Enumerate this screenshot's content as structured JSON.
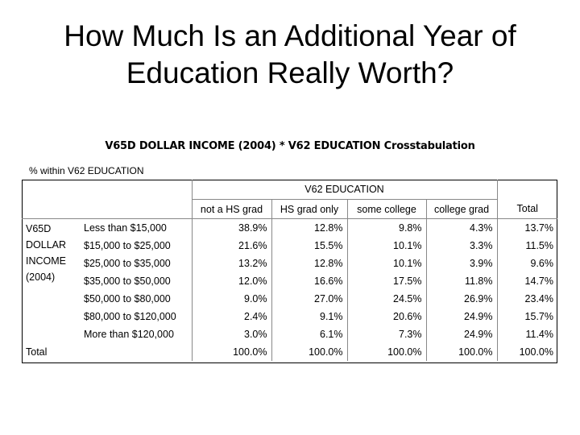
{
  "slide": {
    "title_line1": "How Much Is an Additional Year of",
    "title_line2": "Education Really Worth?"
  },
  "table": {
    "title": "V65D DOLLAR INCOME (2004) * V62 EDUCATION Crosstabulation",
    "subtitle": "% within V62 EDUCATION",
    "col_group": "V62 EDUCATION",
    "columns": [
      "not a HS grad",
      "HS grad only",
      "some college",
      "college grad",
      "Total"
    ],
    "row_var_lines": [
      "V65D",
      "DOLLAR",
      "INCOME",
      "(2004)"
    ],
    "rows": [
      {
        "label": "Less than $15,000",
        "values": [
          "38.9%",
          "12.8%",
          "9.8%",
          "4.3%",
          "13.7%"
        ]
      },
      {
        "label": "$15,000 to $25,000",
        "values": [
          "21.6%",
          "15.5%",
          "10.1%",
          "3.3%",
          "11.5%"
        ]
      },
      {
        "label": "$25,000 to $35,000",
        "values": [
          "13.2%",
          "12.8%",
          "10.1%",
          "3.9%",
          "9.6%"
        ]
      },
      {
        "label": "$35,000 to $50,000",
        "values": [
          "12.0%",
          "16.6%",
          "17.5%",
          "11.8%",
          "14.7%"
        ]
      },
      {
        "label": "$50,000 to $80,000",
        "values": [
          "9.0%",
          "27.0%",
          "24.5%",
          "26.9%",
          "23.4%"
        ]
      },
      {
        "label": "$80,000 to $120,000",
        "values": [
          "2.4%",
          "9.1%",
          "20.6%",
          "24.9%",
          "15.7%"
        ]
      },
      {
        "label": "More than $120,000",
        "values": [
          "3.0%",
          "6.1%",
          "7.3%",
          "24.9%",
          "11.4%"
        ]
      }
    ],
    "total": {
      "label": "Total",
      "values": [
        "100.0%",
        "100.0%",
        "100.0%",
        "100.0%",
        "100.0%"
      ]
    }
  }
}
